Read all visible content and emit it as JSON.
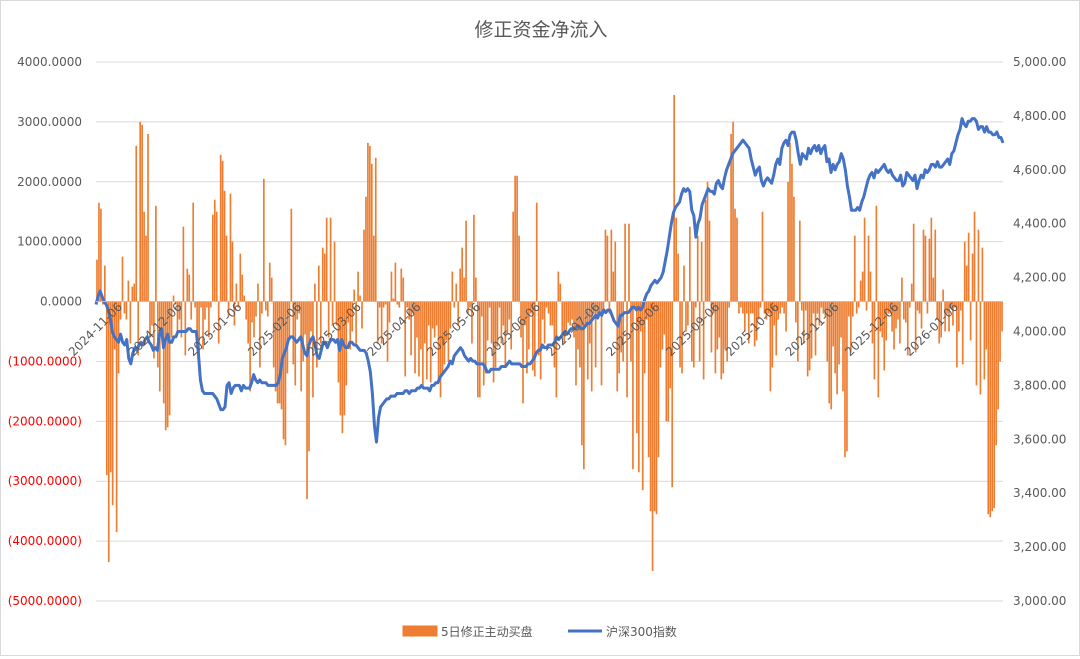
{
  "chart_data": {
    "type": "bar+line",
    "title": "修正资金净流入",
    "colors": {
      "bar": "#ED7D31",
      "line": "#4472C4",
      "negative_label": "#FF0000",
      "grid": "#D9D9D9",
      "text": "#595959"
    },
    "left_axis": {
      "ylim": [
        -5000,
        4000
      ],
      "ticks": [
        {
          "value": 4000,
          "label": "4000.0000"
        },
        {
          "value": 3000,
          "label": "3000.0000"
        },
        {
          "value": 2000,
          "label": "2000.0000"
        },
        {
          "value": 1000,
          "label": "1000.0000"
        },
        {
          "value": 0,
          "label": "0.0000"
        },
        {
          "value": -1000,
          "label": "(1000.0000)"
        },
        {
          "value": -2000,
          "label": "(2000.0000)"
        },
        {
          "value": -3000,
          "label": "(3000.0000)"
        },
        {
          "value": -4000,
          "label": "(4000.0000)"
        },
        {
          "value": -5000,
          "label": "(5000.0000)"
        }
      ]
    },
    "right_axis": {
      "ylim": [
        3000,
        5000
      ],
      "ticks": [
        {
          "value": 5000,
          "label": "5,000.00"
        },
        {
          "value": 4800,
          "label": "4,800.00"
        },
        {
          "value": 4600,
          "label": "4,600.00"
        },
        {
          "value": 4400,
          "label": "4,400.00"
        },
        {
          "value": 4200,
          "label": "4,200.00"
        },
        {
          "value": 4000,
          "label": "4,000.00"
        },
        {
          "value": 3800,
          "label": "3,800.00"
        },
        {
          "value": 3600,
          "label": "3,600.00"
        },
        {
          "value": 3400,
          "label": "3,400.00"
        },
        {
          "value": 3200,
          "label": "3,200.00"
        },
        {
          "value": 3000,
          "label": "3,000.00"
        }
      ]
    },
    "x_tick_labels": [
      "2024-11-06",
      "2024-12-06",
      "2025-01-06",
      "2025-02-06",
      "2025-03-06",
      "2025-04-06",
      "2025-05-06",
      "2025-06-06",
      "2025-07-06",
      "2025-08-06",
      "2025-09-06",
      "2025-10-06",
      "2025-11-06",
      "2025-12-06",
      "2026-01-06"
    ],
    "legend": [
      {
        "name": "5日修正主动买盘",
        "kind": "bar"
      },
      {
        "name": "沪深300指数",
        "kind": "line"
      }
    ],
    "bar_series": {
      "name": "5日修正主动买盘",
      "values": [
        700,
        1650,
        1550,
        -50,
        600,
        -2900,
        -4350,
        -2850,
        -3400,
        -800,
        -3850,
        -1200,
        -300,
        750,
        -200,
        -300,
        350,
        -700,
        250,
        300,
        2600,
        -900,
        3000,
        2950,
        1500,
        1100,
        2800,
        -600,
        -400,
        -950,
        1600,
        -1100,
        -1500,
        -500,
        -1700,
        -2150,
        -2100,
        -1900,
        -600,
        100,
        -50,
        -500,
        -300,
        -600,
        1250,
        -900,
        550,
        450,
        -300,
        1650,
        -100,
        -500,
        -1100,
        -100,
        -800,
        -300,
        -100,
        -600,
        -100,
        1450,
        1700,
        1500,
        -700,
        2450,
        2350,
        1850,
        1100,
        -250,
        1800,
        1000,
        -400,
        300,
        -100,
        800,
        450,
        100,
        -300,
        -700,
        -1500,
        -350,
        -600,
        -250,
        300,
        -1100,
        -200,
        2050,
        -150,
        -250,
        650,
        400,
        -1100,
        -1500,
        -1700,
        -1700,
        -1800,
        -2300,
        -2400,
        -1200,
        -650,
        1550,
        -1050,
        -1400,
        -300,
        -200,
        -1500,
        -1000,
        -550,
        -3300,
        -2500,
        -500,
        -1600,
        300,
        -1100,
        600,
        -700,
        900,
        800,
        1400,
        -600,
        1400,
        -400,
        1000,
        -400,
        -1350,
        -1900,
        -2200,
        -1900,
        -1400,
        -350,
        -800,
        -500,
        200,
        -700,
        500,
        100,
        -450,
        1200,
        1750,
        2650,
        2600,
        2300,
        1100,
        2400,
        -700,
        -100,
        -700,
        -100,
        -50,
        -1000,
        -350,
        500,
        50,
        650,
        -50,
        -100,
        550,
        400,
        -1250,
        -100,
        -300,
        -900,
        -200,
        -1200,
        -600,
        -1250,
        -800,
        -1400,
        -700,
        -1300,
        -400,
        -1350,
        -450,
        -600,
        -400,
        -1300,
        -1600,
        -1200,
        -1050,
        -650,
        -1000,
        -450,
        500,
        -100,
        300,
        -400,
        550,
        900,
        400,
        1350,
        -200,
        -100,
        -700,
        1450,
        400,
        -1600,
        -1600,
        -250,
        -1400,
        -1200,
        -650,
        -100,
        -700,
        -1350,
        -1100,
        -750,
        -100,
        -700,
        -400,
        -1100,
        -550,
        -300,
        -800,
        1500,
        2100,
        2100,
        1100,
        -600,
        -1700,
        -400,
        -1200,
        -800,
        -200,
        -1150,
        -1250,
        1650,
        -900,
        -1300,
        -300,
        -700,
        -100,
        -200,
        -400,
        -400,
        -1100,
        -1600,
        500,
        300,
        -600,
        -700,
        -500,
        -350,
        -400,
        -300,
        -600,
        -1400,
        -800,
        -1100,
        -2400,
        -2800,
        -400,
        -1300,
        -700,
        -1500,
        -200,
        -1100,
        -300,
        -200,
        -1400,
        -200,
        1200,
        1100,
        -200,
        1200,
        500,
        1000,
        -1500,
        -1200,
        -850,
        -1000,
        1300,
        -1600,
        1300,
        -1000,
        -2800,
        -100,
        -2200,
        -2850,
        -500,
        -3150,
        -1200,
        -300,
        -2600,
        -3500,
        -4500,
        -3500,
        -3550,
        -2600,
        -1100,
        -800,
        -550,
        -2000,
        -2000,
        -1450,
        -3100,
        3450,
        1400,
        800,
        -1100,
        -1200,
        600,
        -500,
        -400,
        1250,
        -1000,
        -1100,
        -100,
        1100,
        -1000,
        1000,
        -1300,
        1700,
        2000,
        1350,
        -850,
        -200,
        -1200,
        -800,
        -600,
        -1300,
        -1200,
        -800,
        -1000,
        -100,
        2800,
        3000,
        1550,
        1400,
        -200,
        -100,
        -200,
        -500,
        -200,
        -700,
        -200,
        -200,
        -750,
        -650,
        -300,
        -100,
        1500,
        -200,
        -300,
        -200,
        -1500,
        -1100,
        -400,
        -900,
        -300,
        -200,
        -100,
        -200,
        -500,
        2000,
        2650,
        2300,
        1750,
        -350,
        -1000,
        1350,
        -150,
        -700,
        -150,
        -1250,
        -1150,
        -950,
        -200,
        -900,
        -200,
        -400,
        -100,
        -200,
        -250,
        -1000,
        -1700,
        -1800,
        -750,
        -1200,
        -1550,
        -1050,
        -600,
        -1500,
        -2600,
        -2500,
        -250,
        -850,
        -250,
        1100,
        -200,
        -100,
        350,
        500,
        1400,
        -150,
        1100,
        500,
        -700,
        -1300,
        1600,
        -1600,
        -500,
        -600,
        -1150,
        -650,
        -200,
        -200,
        -500,
        -800,
        -450,
        -300,
        -700,
        400,
        -300,
        -350,
        -900,
        -100,
        300,
        1300,
        -850,
        -150,
        -200,
        -450,
        1200,
        1100,
        -200,
        1050,
        1400,
        400,
        1200,
        -300,
        -700,
        -600,
        200,
        -500,
        -200,
        -500,
        -100,
        -400,
        -100,
        -1100,
        -500,
        -150,
        -1050,
        1000,
        600,
        1150,
        -650,
        800,
        1500,
        -1400,
        1200,
        -1550,
        900,
        -1300,
        -800,
        -3550,
        -3600,
        -3500,
        -3450,
        -2400,
        -1800,
        -1000,
        -500
      ],
      "ylim": [
        -5000,
        4000
      ]
    },
    "line_series": {
      "name": "沪深300指数",
      "values": [
        4100,
        4130,
        4150,
        4130,
        4110,
        4100,
        4080,
        4050,
        4000,
        3980,
        3970,
        3960,
        3990,
        3960,
        3950,
        3970,
        3900,
        3880,
        3920,
        3940,
        3930,
        3950,
        3960,
        3950,
        3970,
        3980,
        3960,
        3950,
        3930,
        3940,
        3930,
        3990,
        4010,
        3940,
        3970,
        3990,
        3960,
        3960,
        3980,
        3980,
        4000,
        4000,
        4000,
        4000,
        4000,
        4010,
        4010,
        4000,
        4000,
        4000,
        3920,
        3820,
        3780,
        3770,
        3770,
        3770,
        3770,
        3770,
        3760,
        3750,
        3730,
        3710,
        3710,
        3720,
        3800,
        3810,
        3770,
        3790,
        3800,
        3800,
        3800,
        3780,
        3800,
        3790,
        3790,
        3790,
        3810,
        3840,
        3820,
        3810,
        3820,
        3810,
        3810,
        3810,
        3800,
        3800,
        3800,
        3800,
        3800,
        3810,
        3840,
        3900,
        3920,
        3940,
        3970,
        3980,
        3980,
        3970,
        3960,
        3970,
        3980,
        3950,
        3920,
        3910,
        3950,
        3970,
        3980,
        3950,
        3910,
        3900,
        3930,
        3960,
        3960,
        3940,
        3960,
        3970,
        3970,
        3960,
        3970,
        3930,
        3970,
        3950,
        3940,
        3940,
        3960,
        3960,
        3950,
        3950,
        3940,
        3930,
        3930,
        3930,
        3920,
        3890,
        3850,
        3770,
        3650,
        3590,
        3680,
        3720,
        3730,
        3740,
        3750,
        3750,
        3760,
        3760,
        3760,
        3770,
        3770,
        3770,
        3770,
        3780,
        3780,
        3770,
        3780,
        3780,
        3780,
        3790,
        3790,
        3800,
        3790,
        3790,
        3790,
        3780,
        3800,
        3800,
        3810,
        3810,
        3830,
        3840,
        3850,
        3860,
        3870,
        3890,
        3880,
        3910,
        3920,
        3930,
        3940,
        3930,
        3910,
        3900,
        3890,
        3900,
        3890,
        3890,
        3880,
        3880,
        3880,
        3880,
        3870,
        3850,
        3850,
        3860,
        3860,
        3860,
        3860,
        3860,
        3870,
        3870,
        3870,
        3880,
        3890,
        3880,
        3880,
        3880,
        3880,
        3880,
        3870,
        3870,
        3870,
        3880,
        3880,
        3890,
        3900,
        3920,
        3930,
        3930,
        3950,
        3940,
        3940,
        3950,
        3950,
        3950,
        3960,
        3980,
        3970,
        3980,
        3990,
        4000,
        3990,
        4000,
        4010,
        4010,
        4010,
        4020,
        4020,
        4010,
        4010,
        4020,
        4030,
        4030,
        4040,
        4050,
        4060,
        4050,
        4070,
        4060,
        4080,
        4070,
        4080,
        4080,
        4060,
        4040,
        4030,
        4020,
        4060,
        4060,
        4070,
        4070,
        4070,
        4080,
        4090,
        4090,
        4080,
        4090,
        4080,
        4090,
        4120,
        4140,
        4150,
        4170,
        4180,
        4190,
        4180,
        4190,
        4200,
        4220,
        4260,
        4300,
        4350,
        4400,
        4440,
        4460,
        4470,
        4480,
        4510,
        4530,
        4520,
        4530,
        4520,
        4450,
        4430,
        4350,
        4400,
        4420,
        4470,
        4490,
        4510,
        4530,
        4520,
        4520,
        4510,
        4550,
        4560,
        4540,
        4530,
        4570,
        4600,
        4620,
        4640,
        4660,
        4670,
        4680,
        4690,
        4700,
        4710,
        4700,
        4690,
        4680,
        4640,
        4610,
        4580,
        4600,
        4610,
        4560,
        4540,
        4560,
        4570,
        4560,
        4550,
        4580,
        4620,
        4640,
        4620,
        4680,
        4700,
        4710,
        4690,
        4730,
        4740,
        4740,
        4710,
        4660,
        4620,
        4660,
        4650,
        4640,
        4680,
        4660,
        4680,
        4690,
        4670,
        4690,
        4660,
        4680,
        4690,
        4630,
        4640,
        4590,
        4620,
        4600,
        4620,
        4630,
        4660,
        4640,
        4600,
        4540,
        4500,
        4450,
        4450,
        4450,
        4460,
        4450,
        4480,
        4500,
        4530,
        4560,
        4580,
        4590,
        4570,
        4600,
        4590,
        4600,
        4610,
        4620,
        4600,
        4590,
        4600,
        4580,
        4570,
        4560,
        4560,
        4580,
        4540,
        4550,
        4590,
        4580,
        4570,
        4560,
        4580,
        4530,
        4560,
        4580,
        4570,
        4600,
        4590,
        4600,
        4620,
        4620,
        4610,
        4630,
        4610,
        4610,
        4620,
        4630,
        4640,
        4620,
        4660,
        4670,
        4700,
        4730,
        4750,
        4790,
        4770,
        4760,
        4780,
        4780,
        4790,
        4790,
        4780,
        4750,
        4760,
        4760,
        4740,
        4760,
        4740,
        4740,
        4730,
        4730,
        4740,
        4720,
        4720,
        4700
      ],
      "ylim": [
        3000,
        5000
      ]
    }
  }
}
